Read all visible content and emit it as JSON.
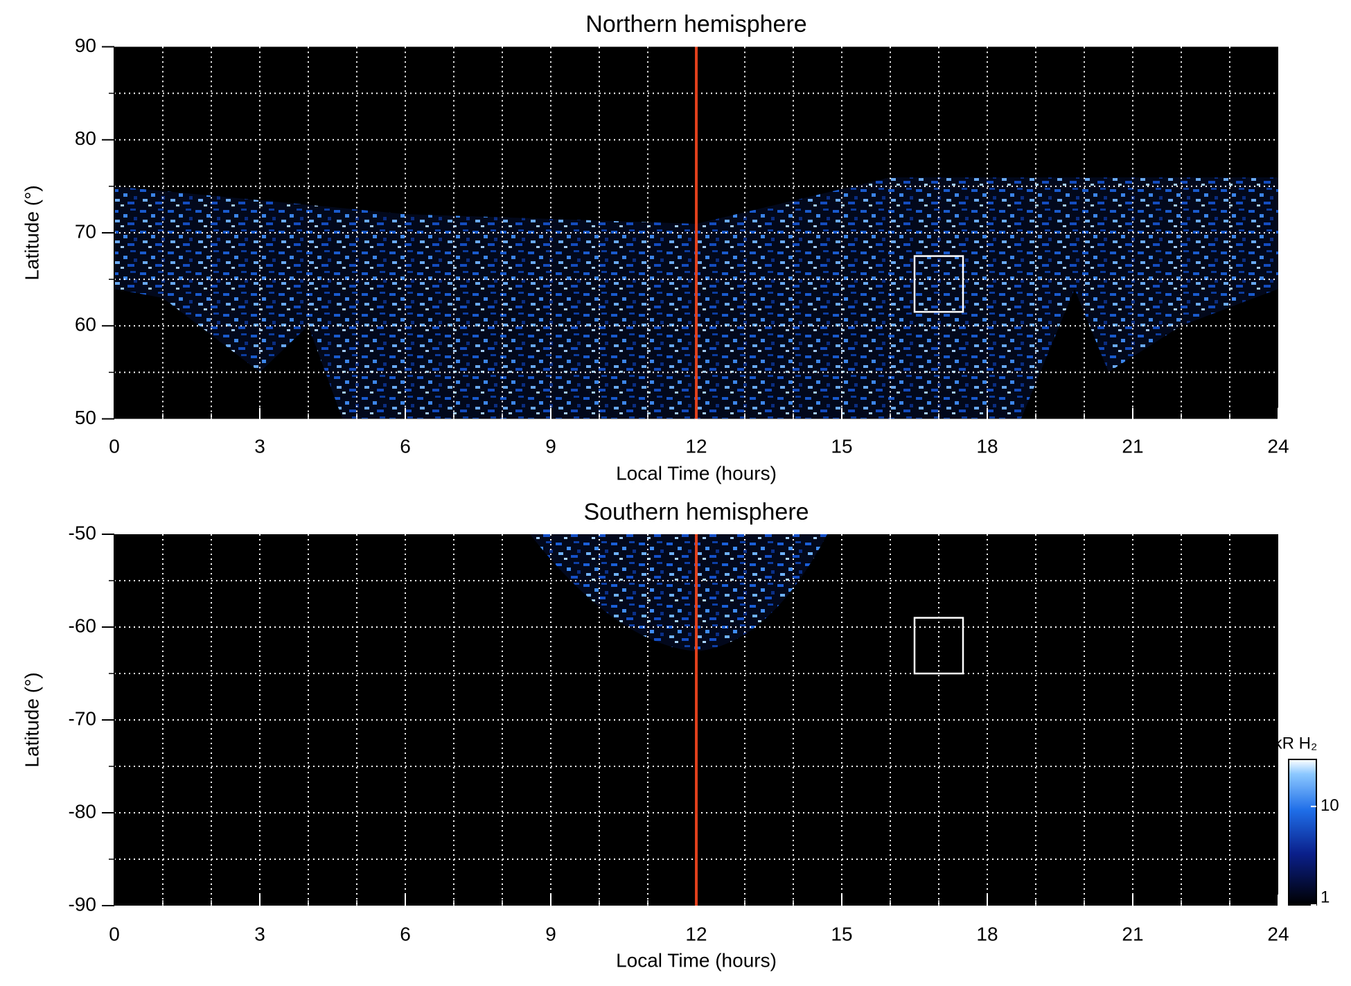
{
  "chart_data": [
    {
      "type": "heatmap",
      "title": "Northern hemisphere",
      "xlabel": "Local Time (hours)",
      "ylabel": "Latitude (°)",
      "xlim": [
        0,
        24
      ],
      "xticks": [
        0,
        3,
        6,
        9,
        12,
        15,
        18,
        21,
        24
      ],
      "ylim": [
        50,
        90
      ],
      "yticks": [
        50,
        60,
        70,
        80,
        90
      ],
      "xgrid": [
        1,
        2,
        3,
        4,
        5,
        6,
        7,
        8,
        9,
        10,
        11,
        12,
        13,
        14,
        15,
        16,
        17,
        18,
        19,
        20,
        21,
        22,
        23
      ],
      "ygrid": [
        55,
        60,
        65,
        70,
        75,
        80,
        85
      ],
      "vline": {
        "x": 12,
        "color": "#e0401c"
      },
      "box": {
        "x": [
          16.5,
          17.5
        ],
        "y": [
          61.5,
          67.5
        ],
        "color": "#ffffff"
      }
    },
    {
      "type": "heatmap",
      "title": "Southern hemisphere",
      "xlabel": "Local Time (hours)",
      "ylabel": "Latitude (°)",
      "xlim": [
        0,
        24
      ],
      "xticks": [
        0,
        3,
        6,
        9,
        12,
        15,
        18,
        21,
        24
      ],
      "ylim": [
        -90,
        -50
      ],
      "yticks": [
        -90,
        -80,
        -70,
        -60,
        -50
      ],
      "xgrid": [
        1,
        2,
        3,
        4,
        5,
        6,
        7,
        8,
        9,
        10,
        11,
        12,
        13,
        14,
        15,
        16,
        17,
        18,
        19,
        20,
        21,
        22,
        23
      ],
      "ygrid": [
        -85,
        -80,
        -75,
        -70,
        -65,
        -60,
        -55
      ],
      "vline": {
        "x": 12,
        "color": "#e0401c"
      },
      "box": {
        "x": [
          16.5,
          17.5
        ],
        "y": [
          -65,
          -59
        ],
        "color": "#ffffff"
      },
      "colorbar": {
        "label": "kR H₂",
        "lim": [
          1,
          30
        ],
        "ticks": [
          1,
          10
        ],
        "log": true
      }
    }
  ]
}
